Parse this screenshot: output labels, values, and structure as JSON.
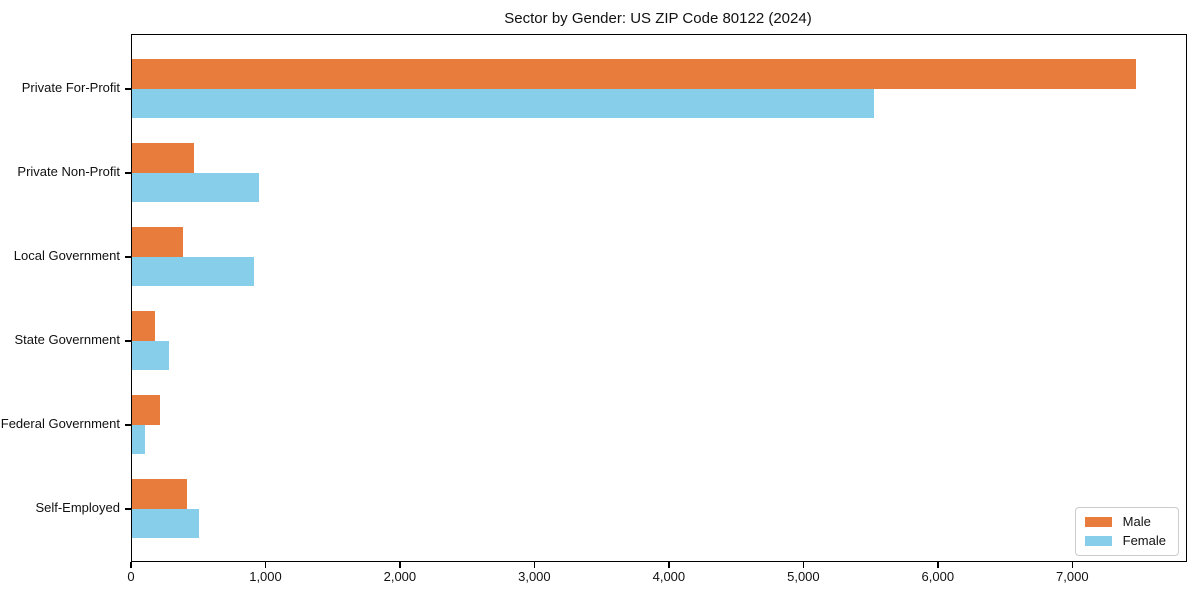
{
  "title": "Sector by Gender: US ZIP Code 80122 (2024)",
  "colors": {
    "male": "#e87c3d",
    "female": "#87ceeb",
    "axis": "#000000",
    "legend_border": "#cccccc",
    "text": "#111111"
  },
  "chart_data": {
    "type": "bar",
    "orientation": "horizontal",
    "title": "Sector by Gender: US ZIP Code 80122 (2024)",
    "xlabel": "",
    "ylabel": "",
    "categories": [
      "Private For-Profit",
      "Private Non-Profit",
      "Local Government",
      "State Government",
      "Federal Government",
      "Self-Employed"
    ],
    "series": [
      {
        "name": "Male",
        "color": "#e87c3d",
        "values": [
          7465,
          460,
          380,
          170,
          210,
          410
        ]
      },
      {
        "name": "Female",
        "color": "#87ceeb",
        "values": [
          5520,
          945,
          910,
          275,
          100,
          500
        ]
      }
    ],
    "x_ticks": [
      0,
      1000,
      2000,
      3000,
      4000,
      5000,
      6000,
      7000
    ],
    "x_tick_labels": [
      "0",
      "1,000",
      "2,000",
      "3,000",
      "4,000",
      "5,000",
      "6,000",
      "7,000"
    ],
    "xlim": [
      0,
      7838
    ],
    "grid": false,
    "legend_position": "lower right",
    "legend_entries": [
      "Male",
      "Female"
    ]
  }
}
